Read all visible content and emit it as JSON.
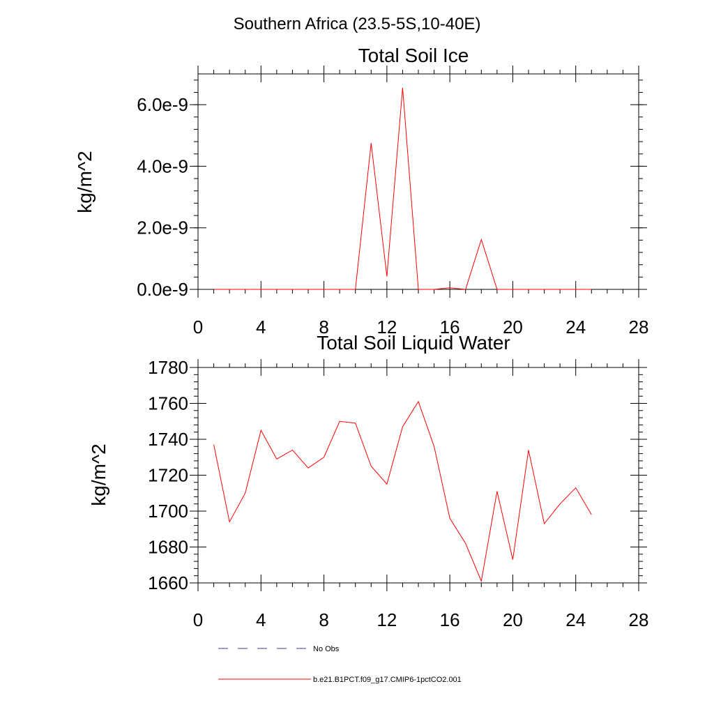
{
  "page_title": "Southern Africa (23.5-5S,10-40E)",
  "chart_data": [
    {
      "type": "line",
      "title": "Total Soil Ice",
      "xlabel": "",
      "ylabel": "kg/m^2",
      "xlim": [
        0,
        28
      ],
      "ylim": [
        0,
        7e-09
      ],
      "xticks": [
        0,
        4,
        8,
        12,
        16,
        20,
        24,
        28
      ],
      "xtick_labels": [
        "0",
        "4",
        "8",
        "12",
        "16",
        "20",
        "24",
        "28"
      ],
      "yticks": [
        0,
        2e-09,
        4e-09,
        6e-09
      ],
      "ytick_labels": [
        "0.0e-9",
        "2.0e-9",
        "4.0e-9",
        "6.0e-9"
      ],
      "grid": false,
      "series": [
        {
          "name": "b.e21.B1PCT.f09_g17.CMIP6-1pctCO2.001",
          "color": "#ff0000",
          "x": [
            1,
            2,
            3,
            4,
            5,
            6,
            7,
            8,
            9,
            10,
            11,
            12,
            13,
            14,
            15,
            16,
            17,
            18,
            19,
            20,
            21,
            22,
            23,
            24,
            25
          ],
          "values": [
            0,
            0,
            0,
            0,
            0,
            0,
            0,
            0,
            0,
            0,
            4.75e-09,
            4.2e-10,
            6.55e-09,
            0,
            0,
            5e-11,
            0,
            1.62e-09,
            0,
            0,
            0,
            0,
            0,
            0,
            0
          ]
        }
      ]
    },
    {
      "type": "line",
      "title": "Total Soil Liquid Water",
      "xlabel": "",
      "ylabel": "kg/m^2",
      "xlim": [
        0,
        28
      ],
      "ylim": [
        1660,
        1780
      ],
      "xticks": [
        0,
        4,
        8,
        12,
        16,
        20,
        24,
        28
      ],
      "xtick_labels": [
        "0",
        "4",
        "8",
        "12",
        "16",
        "20",
        "24",
        "28"
      ],
      "yticks": [
        1660,
        1680,
        1700,
        1720,
        1740,
        1760,
        1780
      ],
      "ytick_labels": [
        "1660",
        "1680",
        "1700",
        "1720",
        "1740",
        "1760",
        "1780"
      ],
      "grid": false,
      "series": [
        {
          "name": "b.e21.B1PCT.f09_g17.CMIP6-1pctCO2.001",
          "color": "#ff0000",
          "x": [
            1,
            2,
            3,
            4,
            5,
            6,
            7,
            8,
            9,
            10,
            11,
            12,
            13,
            14,
            15,
            16,
            17,
            18,
            19,
            20,
            21,
            22,
            23,
            24,
            25
          ],
          "values": [
            1737,
            1694,
            1710,
            1745,
            1729,
            1734,
            1724,
            1730,
            1750,
            1749,
            1725,
            1715,
            1747,
            1761,
            1736,
            1696,
            1682,
            1661,
            1711,
            1673,
            1734,
            1693,
            1704,
            1713,
            1698
          ]
        }
      ]
    }
  ],
  "legend": [
    {
      "label": "No Obs",
      "color": "#3d3d8a",
      "style": "dashed"
    },
    {
      "label": "b.e21.B1PCT.f09_g17.CMIP6-1pctCO2.001",
      "color": "#ff0000",
      "style": "solid"
    }
  ]
}
